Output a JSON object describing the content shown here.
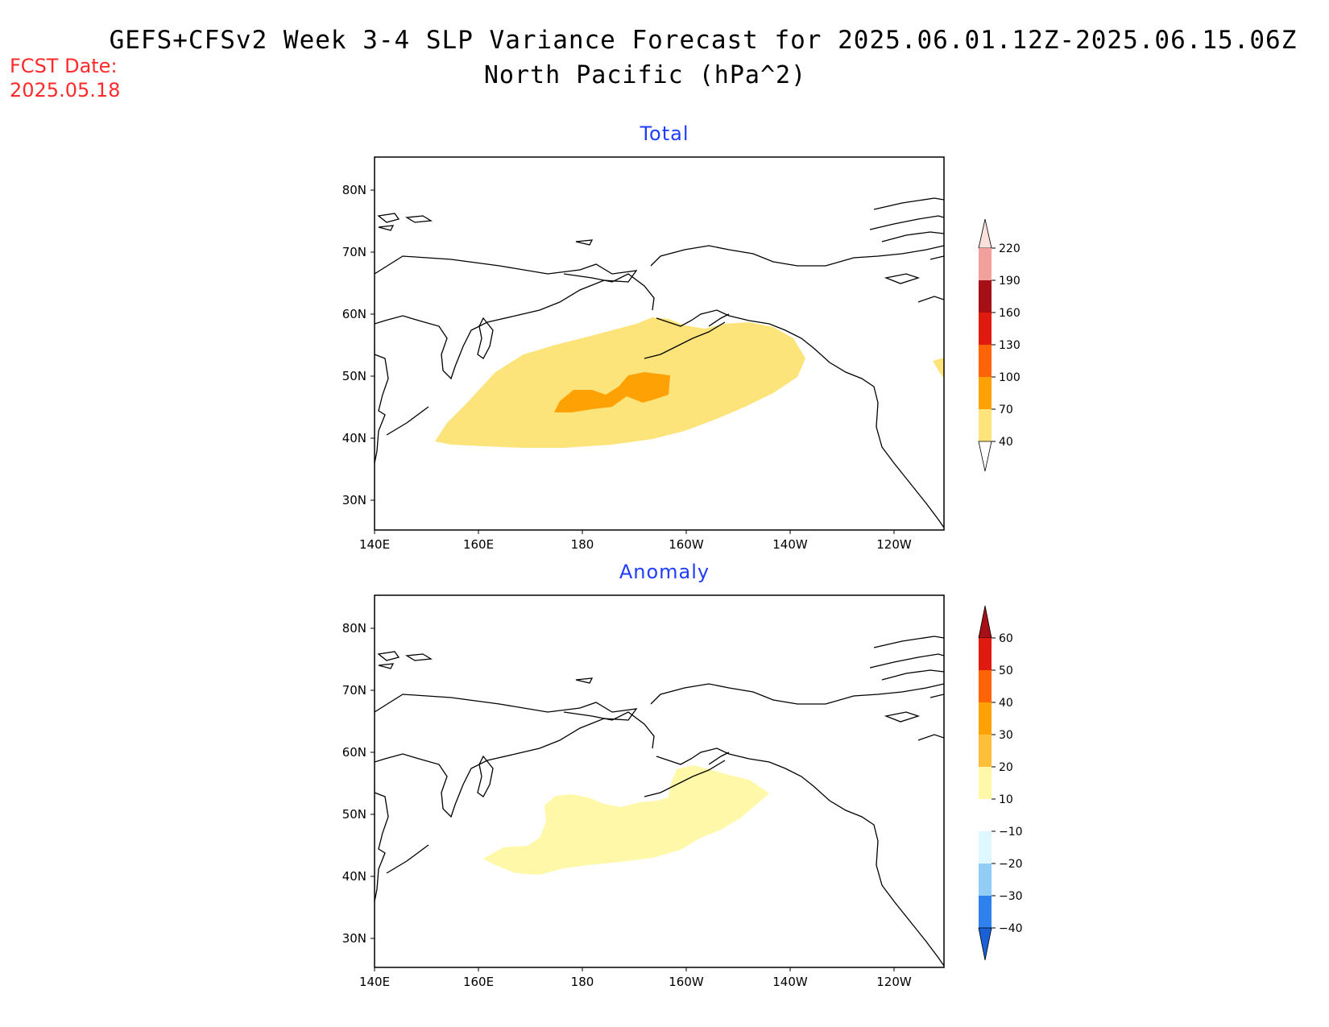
{
  "header": {
    "title_line1": "GEFS+CFSv2 Week 3-4 SLP Variance Forecast for 2025.06.01.12Z-2025.06.15.06Z",
    "title_line2": "North Pacific (hPa^2)",
    "fcst_label": "FCST Date:",
    "fcst_date": "2025.05.18",
    "fcst_color": "#ff2a2a"
  },
  "panels": [
    {
      "title": "Total",
      "lat_ticks": [
        "80N",
        "70N",
        "60N",
        "50N",
        "40N",
        "30N"
      ],
      "lon_ticks": [
        "140E",
        "160E",
        "180",
        "160W",
        "140W",
        "120W"
      ],
      "colorbar": {
        "labels": [
          "220",
          "190",
          "160",
          "130",
          "100",
          "70",
          "40"
        ],
        "colors": [
          "#fbe1dc",
          "#f2a09c",
          "#a50f15",
          "#e11a10",
          "#fe6405",
          "#fea105",
          "#fde47a"
        ]
      }
    },
    {
      "title": "Anomaly",
      "lat_ticks": [
        "80N",
        "70N",
        "60N",
        "50N",
        "40N",
        "30N"
      ],
      "lon_ticks": [
        "140E",
        "160E",
        "180",
        "160W",
        "140W",
        "120W"
      ],
      "colorbar": {
        "labels": [
          "60",
          "50",
          "40",
          "30",
          "20",
          "10",
          "−10",
          "−20",
          "−30",
          "−40"
        ],
        "colors": [
          "#a50f15",
          "#e11a10",
          "#fe6405",
          "#fea105",
          "#fdbf3a",
          "#fff8a8",
          "#ffffff",
          "#dff7ff",
          "#92cdf5",
          "#2f82ed",
          "#1a60d6"
        ]
      }
    }
  ],
  "map_data": {
    "region": "North Pacific",
    "projection": "lat-lon",
    "lon_range": [
      "140E",
      "110W"
    ],
    "lat_range": [
      "25N",
      "85N"
    ],
    "total_fields": [
      {
        "level": "40-70",
        "color": "#fde47a",
        "center": "50N 175W"
      },
      {
        "level": "70-100",
        "color": "#fea105",
        "center": "48N 172W"
      }
    ],
    "anomaly_fields": [
      {
        "level": "10-20",
        "color": "#fff8a8",
        "center": "48N 170W"
      }
    ]
  }
}
